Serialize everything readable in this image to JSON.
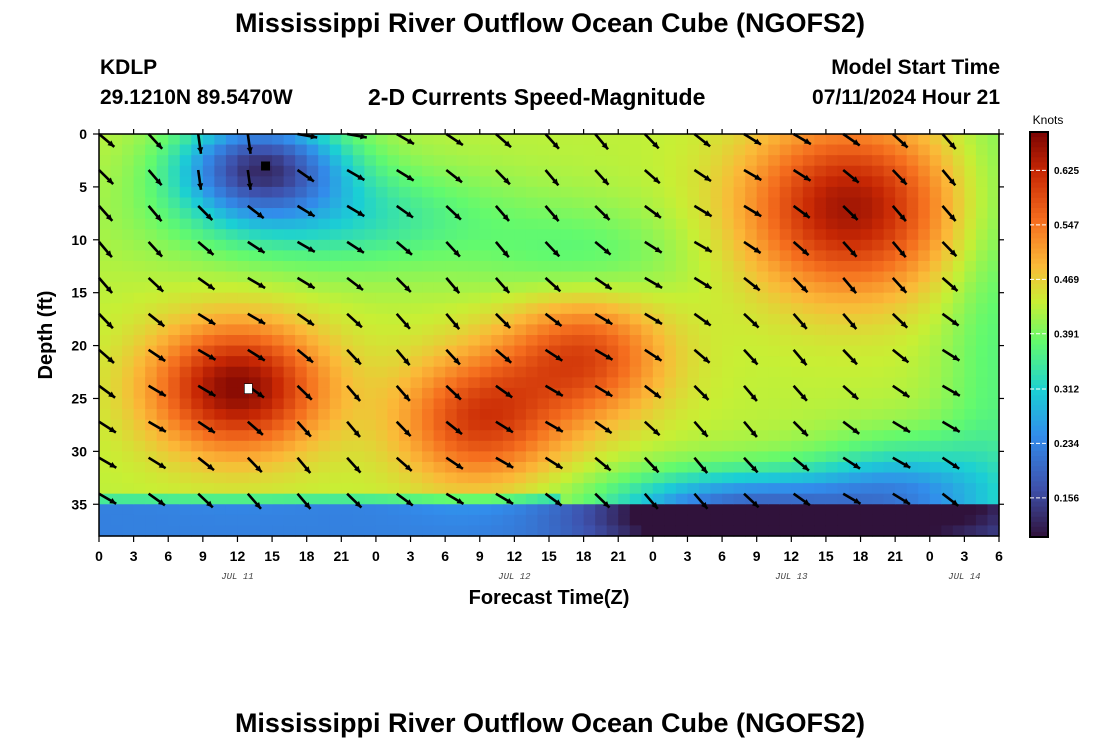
{
  "header": {
    "title": "Mississippi River Outflow Ocean Cube (NGOFS2)",
    "station": "KDLP",
    "coords": "29.1210N  89.5470W",
    "subtitle": "2-D Currents Speed-Magnitude",
    "model_start_label": "Model Start Time",
    "model_start_value": "07/11/2024 Hour 21"
  },
  "footer": {
    "title": "Mississippi River Outflow Ocean Cube (NGOFS2)"
  },
  "chart_data": {
    "type": "heatmap",
    "title": "2-D Currents Speed-Magnitude",
    "xlabel": "Forecast Time(Z)",
    "ylabel": "Depth (ft)",
    "x_unit": "hours from JUL 11 00Z",
    "xlim": [
      0,
      78
    ],
    "ylim": [
      0,
      38
    ],
    "y_inverted": true,
    "x_tick_labels": [
      "0",
      "3",
      "6",
      "9",
      "12",
      "15",
      "18",
      "21",
      "0",
      "3",
      "6",
      "9",
      "12",
      "15",
      "18",
      "21",
      "0",
      "3",
      "6",
      "9",
      "12",
      "15",
      "18",
      "21",
      "0",
      "3",
      "6"
    ],
    "y_tick_labels": [
      "0",
      "5",
      "10",
      "15",
      "20",
      "25",
      "30",
      "35"
    ],
    "date_labels": [
      {
        "text": "JUL 11",
        "hour": 12
      },
      {
        "text": "JUL 12",
        "hour": 36
      },
      {
        "text": "JUL 13",
        "hour": 60
      },
      {
        "text": "JUL 14",
        "hour": 75
      }
    ],
    "colorbar": {
      "title": "Knots",
      "range": [
        0.1,
        0.68
      ],
      "ticks": [
        "0.156",
        "0.234",
        "0.312",
        "0.391",
        "0.469",
        "0.547",
        "0.625"
      ]
    },
    "vectors": "black arrows showing current direction on a 4.3 h by 3.4 ft grid",
    "features": [
      {
        "desc": "slow core near surface",
        "hour": 15,
        "depth": 3,
        "speed": 0.13
      },
      {
        "desc": "fast core at mid depth",
        "hour": 12,
        "depth": 24,
        "speed": 0.65
      },
      {
        "desc": "fast band",
        "hour": 34,
        "depth": 25,
        "speed": 0.57
      },
      {
        "desc": "fast upper core",
        "hour": 64,
        "depth": 7,
        "speed": 0.62
      },
      {
        "desc": "slow lower core",
        "hour": 54,
        "depth": 35,
        "speed": 0.14
      }
    ]
  }
}
